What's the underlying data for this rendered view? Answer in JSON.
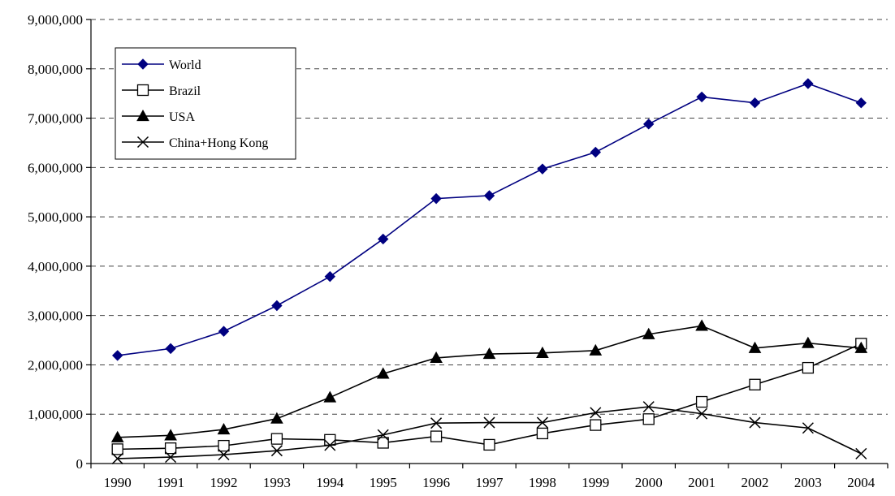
{
  "chart_data": {
    "type": "line",
    "title": "",
    "xlabel": "",
    "ylabel": "",
    "categories": [
      "1990",
      "1991",
      "1992",
      "1993",
      "1994",
      "1995",
      "1996",
      "1997",
      "1998",
      "1999",
      "2000",
      "2001",
      "2002",
      "2003",
      "2004"
    ],
    "ylim": [
      0,
      9000000
    ],
    "yticks": [
      "0",
      "1,000,000",
      "2,000,000",
      "3,000,000",
      "4,000,000",
      "5,000,000",
      "6,000,000",
      "7,000,000",
      "8,000,000",
      "9,000,000"
    ],
    "grid": "horizontal dashed",
    "legend_position": "top-left",
    "series": [
      {
        "name": "World",
        "marker": "filled-diamond",
        "color": "#000080",
        "values": [
          2190000,
          2330000,
          2680000,
          3200000,
          3790000,
          4550000,
          5370000,
          5430000,
          5970000,
          6310000,
          6880000,
          7430000,
          7310000,
          7700000,
          7310000
        ]
      },
      {
        "name": "Brazil",
        "marker": "open-square",
        "color": "#000000",
        "values": [
          290000,
          310000,
          360000,
          500000,
          480000,
          420000,
          550000,
          380000,
          610000,
          780000,
          900000,
          1250000,
          1600000,
          1940000,
          2430000
        ]
      },
      {
        "name": "USA",
        "marker": "filled-triangle",
        "color": "#000000",
        "values": [
          530000,
          570000,
          690000,
          910000,
          1340000,
          1820000,
          2140000,
          2220000,
          2240000,
          2290000,
          2620000,
          2790000,
          2340000,
          2440000,
          2340000
        ]
      },
      {
        "name": "China+Hong Kong",
        "marker": "x",
        "color": "#000000",
        "values": [
          100000,
          130000,
          180000,
          260000,
          370000,
          580000,
          820000,
          830000,
          830000,
          1030000,
          1150000,
          1010000,
          830000,
          720000,
          200000
        ]
      }
    ]
  }
}
